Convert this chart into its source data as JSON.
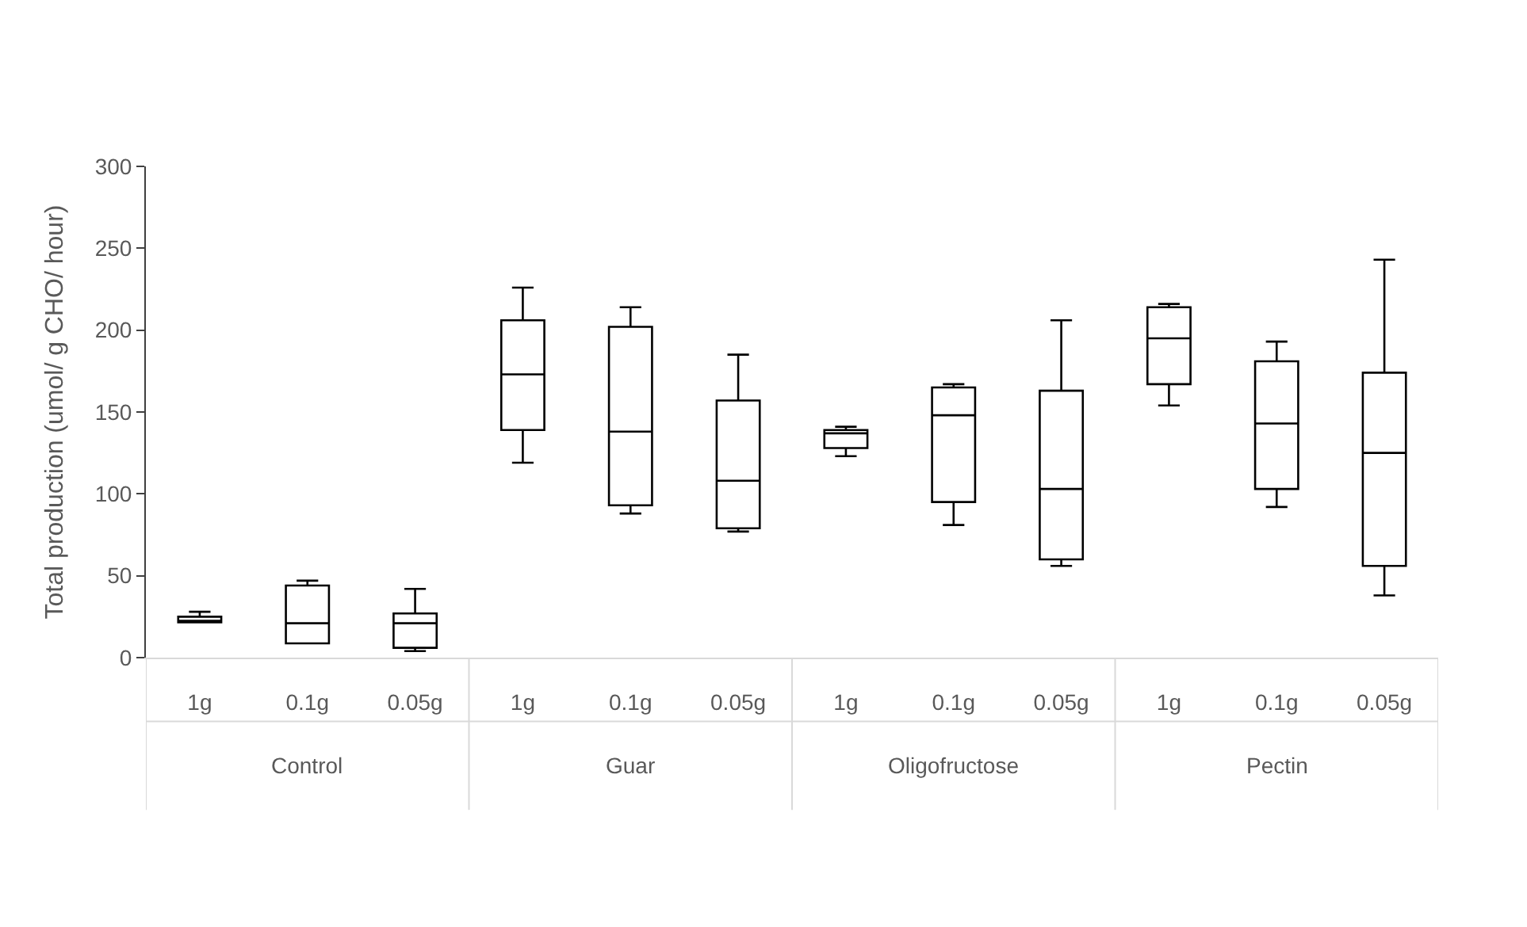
{
  "chart_data": {
    "type": "box",
    "ylabel": "Total production (umol/ g CHO/ hour)",
    "categories": [
      "1g",
      "0.1g",
      "0.05g",
      "1g",
      "0.1g",
      "0.05g",
      "1g",
      "0.1g",
      "0.05g",
      "1g",
      "0.1g",
      "0.05g"
    ],
    "annotations": [
      "Control",
      "Guar",
      "Oligofructose",
      "Pectin"
    ],
    "ylim": [
      0,
      300
    ],
    "yticks": [
      0,
      50,
      100,
      150,
      200,
      250,
      300
    ],
    "series": [
      {
        "color": "#000000",
        "boxes": [
          {
            "low": 21.5,
            "q1": 21.5,
            "median": 22.5,
            "q3": 25,
            "high": 28
          },
          {
            "low": 8.7,
            "q1": 8.7,
            "median": 21,
            "q3": 44,
            "high": 47
          },
          {
            "low": 4,
            "q1": 6,
            "median": 21,
            "q3": 27,
            "high": 42
          },
          {
            "low": 119,
            "q1": 139,
            "median": 173,
            "q3": 206,
            "high": 226
          },
          {
            "low": 88,
            "q1": 93,
            "median": 138,
            "q3": 202,
            "high": 214
          },
          {
            "low": 77,
            "q1": 79,
            "median": 108,
            "q3": 157,
            "high": 185
          },
          {
            "low": 123,
            "q1": 128,
            "median": 137,
            "q3": 139,
            "high": 141
          },
          {
            "low": 81,
            "q1": 95,
            "median": 148,
            "q3": 165,
            "high": 167
          },
          {
            "low": 56,
            "q1": 60,
            "median": 103,
            "q3": 163,
            "high": 206
          },
          {
            "low": 154,
            "q1": 167,
            "median": 195,
            "q3": 214,
            "high": 216
          },
          {
            "low": 92,
            "q1": 103,
            "median": 143,
            "q3": 181,
            "high": 193
          },
          {
            "low": 38,
            "q1": 56,
            "median": 125,
            "q3": 174,
            "high": 243
          }
        ]
      }
    ]
  }
}
